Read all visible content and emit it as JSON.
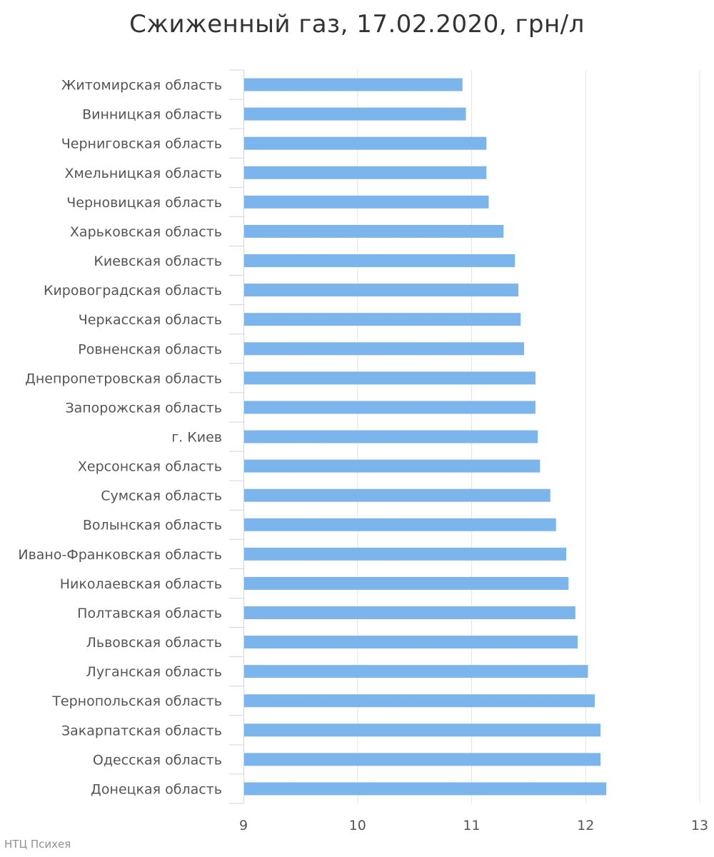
{
  "chart_data": {
    "type": "bar",
    "orientation": "horizontal",
    "title": "Сжиженный газ, 17.02.2020, грн/л",
    "xlabel": "",
    "ylabel": "",
    "xlim": [
      9,
      13
    ],
    "xticks": [
      "9",
      "10",
      "11",
      "12",
      "13"
    ],
    "grid": true,
    "bar_color": "#7cb5ec",
    "categories": [
      "Житомирская область",
      "Винницкая область",
      "Черниговская область",
      "Хмельницкая область",
      "Черновицкая область",
      "Харьковская область",
      "Киевская область",
      "Кировоградская область",
      "Черкасская область",
      "Ровненская область",
      "Днепропетровская область",
      "Запорожская область",
      "г. Киев",
      "Херсонская область",
      "Сумская область",
      "Волынская область",
      "Ивано-Франковская область",
      "Николаевская область",
      "Полтавская область",
      "Львовская область",
      "Луганская область",
      "Тернопольская область",
      "Закарпатская область",
      "Одесская область",
      "Донецкая область"
    ],
    "values": [
      10.92,
      10.95,
      11.13,
      11.13,
      11.15,
      11.28,
      11.38,
      11.41,
      11.43,
      11.46,
      11.56,
      11.56,
      11.58,
      11.6,
      11.69,
      11.74,
      11.83,
      11.85,
      11.91,
      11.93,
      12.02,
      12.08,
      12.13,
      12.13,
      12.18
    ]
  },
  "credit": "НТЦ Психея"
}
